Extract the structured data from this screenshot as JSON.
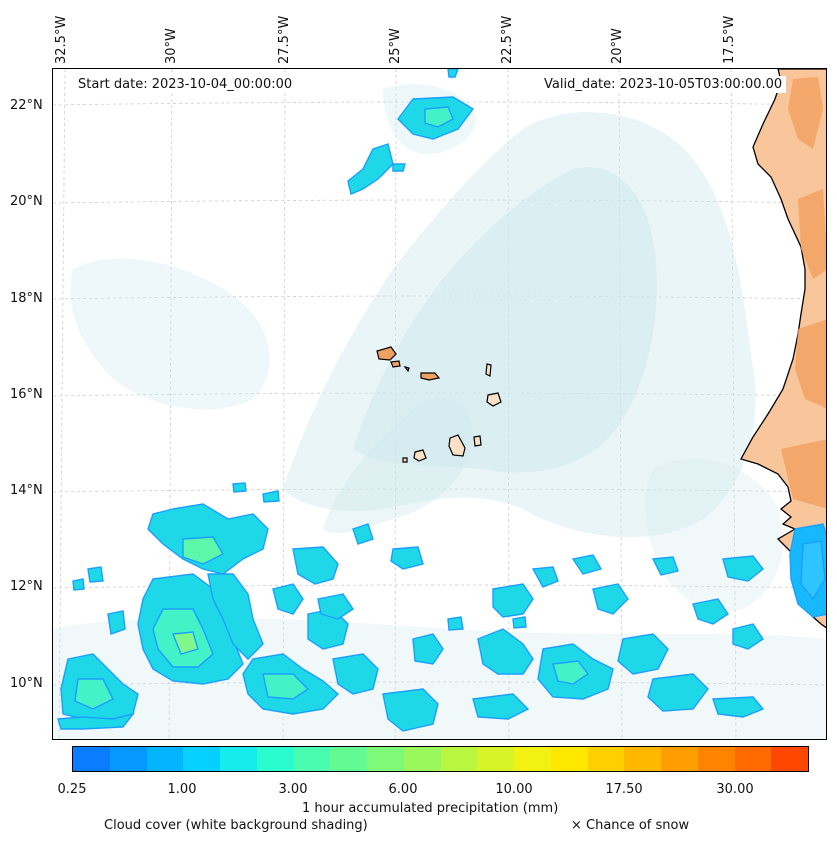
{
  "header": {
    "start_date": "Start date: 2023-10-04_00:00:00",
    "valid_date": "Valid_date: 2023-10-05T03:00:00.00"
  },
  "longitude_labels": [
    "32.5°W",
    "30°W",
    "27.5°W",
    "25°W",
    "22.5°W",
    "20°W",
    "17.5°W"
  ],
  "latitude_labels": [
    "22°N",
    "20°N",
    "18°N",
    "16°N",
    "14°N",
    "12°N",
    "10°N"
  ],
  "colorbar": {
    "tick_labels": [
      "0.25",
      "1.00",
      "3.00",
      "6.00",
      "10.00",
      "17.50",
      "30.00"
    ],
    "colors": [
      "#0a7dff",
      "#0798ff",
      "#05b4ff",
      "#05d0ff",
      "#16ecec",
      "#2afcd0",
      "#49fcb0",
      "#63fa94",
      "#7efa78",
      "#9af85c",
      "#b8f640",
      "#d6f428",
      "#f2f212",
      "#fee800",
      "#fed000",
      "#feb800",
      "#fe9e00",
      "#fe8400",
      "#fe6a00",
      "#fe4800"
    ],
    "title": "1 hour accumulated precipitation (mm)"
  },
  "legend": {
    "cloud_cover": "Cloud cover (white background shading)",
    "snow": "× Chance of snow"
  },
  "palette": {
    "cloud": "#cfe8ee",
    "land": "#f8b880",
    "coast": "#000000"
  }
}
